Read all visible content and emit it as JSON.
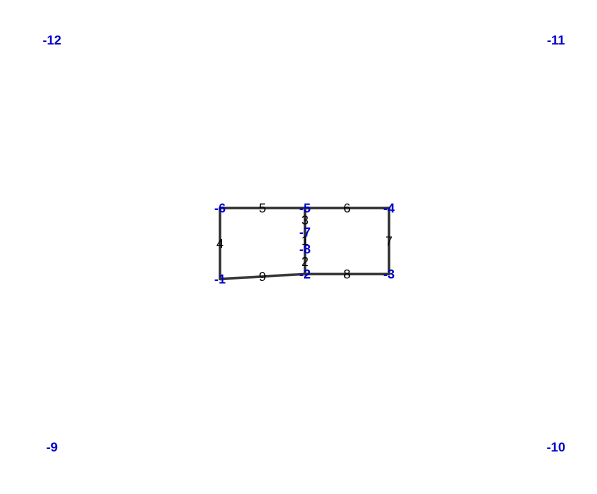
{
  "colors": {
    "node_label": "#0000cc",
    "edge_label": "#000000",
    "edge_line": "#333333"
  },
  "nodes": [
    {
      "id": "n-12",
      "label": "-12"
    },
    {
      "id": "n-11",
      "label": "-11"
    },
    {
      "id": "n-9",
      "label": "-9"
    },
    {
      "id": "n-10",
      "label": "-10"
    },
    {
      "id": "n-6",
      "label": "-6"
    },
    {
      "id": "n-5",
      "label": "-5"
    },
    {
      "id": "n-4",
      "label": "-4"
    },
    {
      "id": "n-7",
      "label": "-7"
    },
    {
      "id": "n-8",
      "label": "-8"
    },
    {
      "id": "n-2",
      "label": "-2"
    },
    {
      "id": "n-1",
      "label": "-1"
    },
    {
      "id": "n-3",
      "label": "-3"
    }
  ],
  "edges": [
    {
      "from": "n-6",
      "to": "n-5",
      "label": "5"
    },
    {
      "from": "n-5",
      "to": "n-4",
      "label": "6"
    },
    {
      "from": "n-6",
      "to": "n-1",
      "label": "4"
    },
    {
      "from": "n-4",
      "to": "n-3",
      "label": "7"
    },
    {
      "from": "n-1",
      "to": "n-2",
      "label": "9"
    },
    {
      "from": "n-2",
      "to": "n-3",
      "label": "8"
    },
    {
      "from": "n-5",
      "to": "n-7",
      "label": "3"
    },
    {
      "from": "n-7",
      "to": "n-8",
      "label": "1"
    },
    {
      "from": "n-8",
      "to": "n-2",
      "label": "2"
    }
  ]
}
